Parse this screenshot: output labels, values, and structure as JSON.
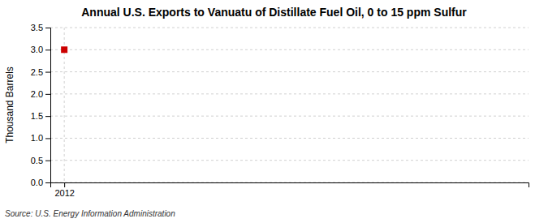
{
  "chart_data": {
    "type": "scatter",
    "title": "Annual U.S. Exports to Vanuatu of Distillate Fuel Oil, 0 to 15 ppm Sulfur",
    "ylabel": "Thousand Barrels",
    "annotations": [
      "Source: U.S. Energy Information Administration"
    ],
    "x": [
      2012
    ],
    "values": [
      3.0
    ],
    "color": "#cc0000",
    "marker": "square",
    "xlim": [
      2011.7,
      2022.0
    ],
    "xticks": [
      2012
    ],
    "ylim": [
      0.0,
      3.5
    ],
    "yticks": [
      {
        "value": 0.0,
        "label": "0.0"
      },
      0.5,
      {
        "value": 1.0,
        "label": "1.0"
      },
      1.5,
      {
        "value": 2.0,
        "label": "2.0"
      },
      2.5,
      {
        "value": 3.0,
        "label": "3.0"
      },
      3.5
    ],
    "grid": true
  }
}
